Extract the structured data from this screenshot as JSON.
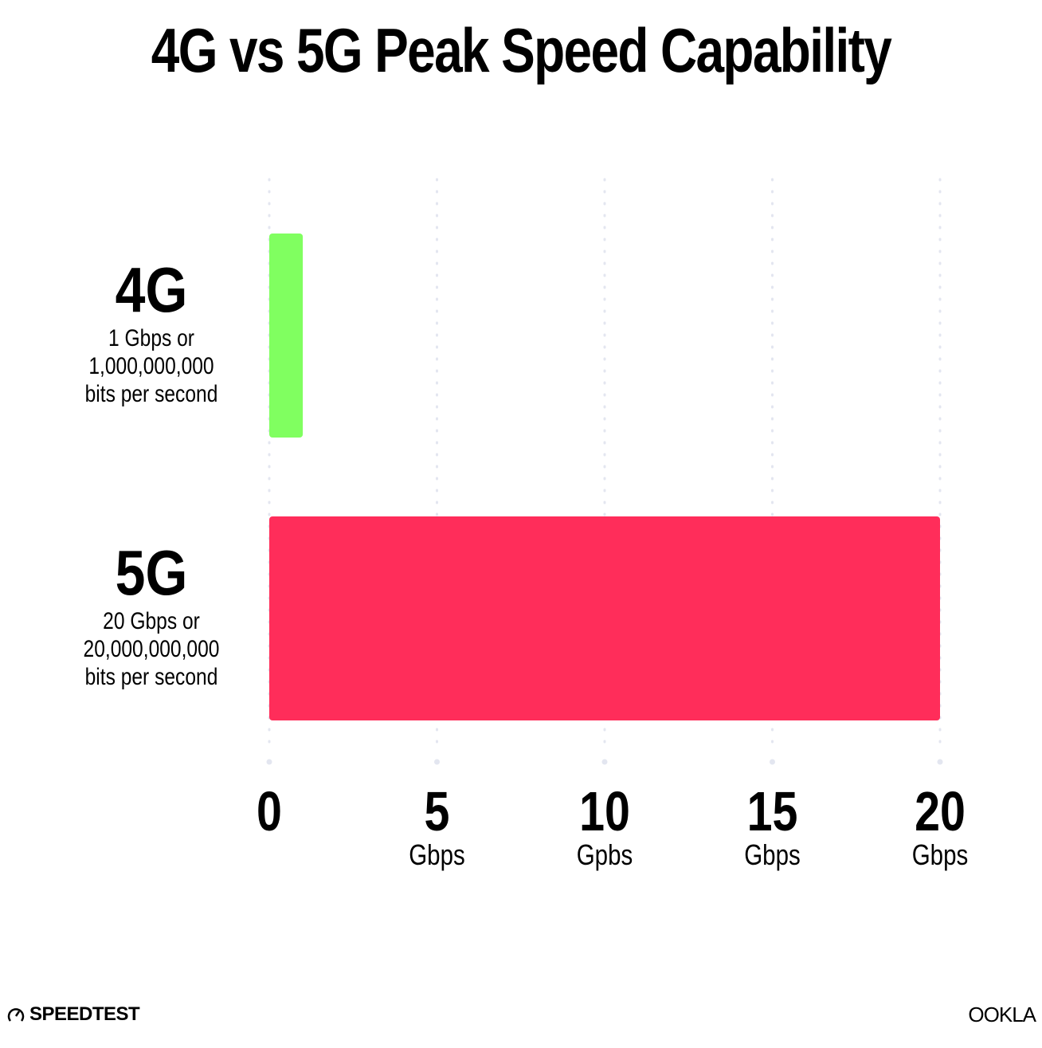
{
  "chart_data": {
    "type": "bar",
    "orientation": "horizontal",
    "title": "4G vs 5G Peak Speed Capability",
    "categories": [
      {
        "label": "4G",
        "desc": [
          "1 Gbps or",
          "1,000,000,000",
          "bits per second"
        ]
      },
      {
        "label": "5G",
        "desc": [
          "20 Gbps or",
          "20,000,000,000",
          "bits per second"
        ]
      }
    ],
    "values": [
      1,
      20
    ],
    "colors": [
      "#80ff60",
      "#ff2d5a"
    ],
    "xlim": [
      0,
      20
    ],
    "ticks": [
      {
        "value": 0,
        "label": "0",
        "unit": ""
      },
      {
        "value": 5,
        "label": "5",
        "unit": "Gbps"
      },
      {
        "value": 10,
        "label": "10",
        "unit": "Gpbs"
      },
      {
        "value": 15,
        "label": "15",
        "unit": "Gbps"
      },
      {
        "value": 20,
        "label": "20",
        "unit": "Gbps"
      }
    ],
    "grid": true,
    "grid_color": "#e3e6f0"
  },
  "branding": {
    "left": "SPEEDTEST",
    "right": "OOKLA"
  }
}
